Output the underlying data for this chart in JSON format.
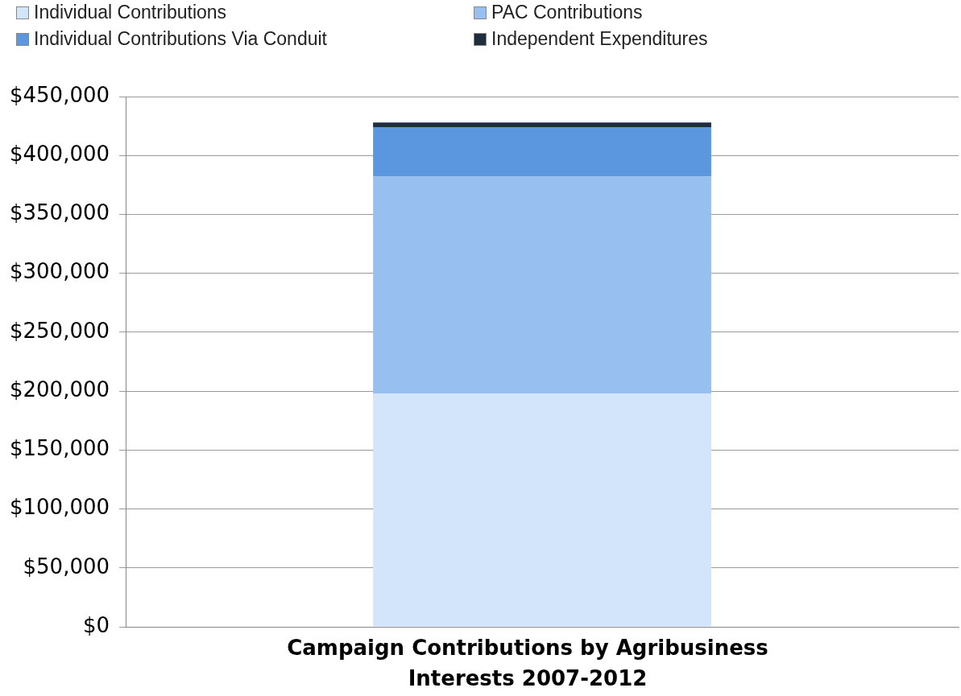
{
  "chart_data": {
    "type": "bar",
    "stacked": true,
    "categories": [
      null
    ],
    "xlabel": "Campaign Contributions by Agribusiness Interests 2007-2012",
    "series": [
      {
        "name": "Individual Contributions",
        "color": "#d3e5fb",
        "values": [
          198000
        ]
      },
      {
        "name": "PAC Contributions",
        "color": "#97bff0",
        "values": [
          184000
        ]
      },
      {
        "name": "Individual Contributions Via Conduit",
        "color": "#5b97de",
        "values": [
          42000
        ]
      },
      {
        "name": "Independent Expenditures",
        "color": "#1f2d3d",
        "values": [
          4000
        ]
      }
    ],
    "ylim": [
      0,
      450000
    ],
    "yticks": [
      {
        "value": 0,
        "label": "$0"
      },
      {
        "value": 50000,
        "label": "$50,000"
      },
      {
        "value": 100000,
        "label": "$100,000"
      },
      {
        "value": 150000,
        "label": "$150,000"
      },
      {
        "value": 200000,
        "label": "$200,000"
      },
      {
        "value": 250000,
        "label": "$250,000"
      },
      {
        "value": 300000,
        "label": "$300,000"
      },
      {
        "value": 350000,
        "label": "$350,000"
      },
      {
        "value": 400000,
        "label": "$400,000"
      },
      {
        "value": 450000,
        "label": "$450,000"
      }
    ],
    "grid": "y",
    "legend": "top"
  }
}
